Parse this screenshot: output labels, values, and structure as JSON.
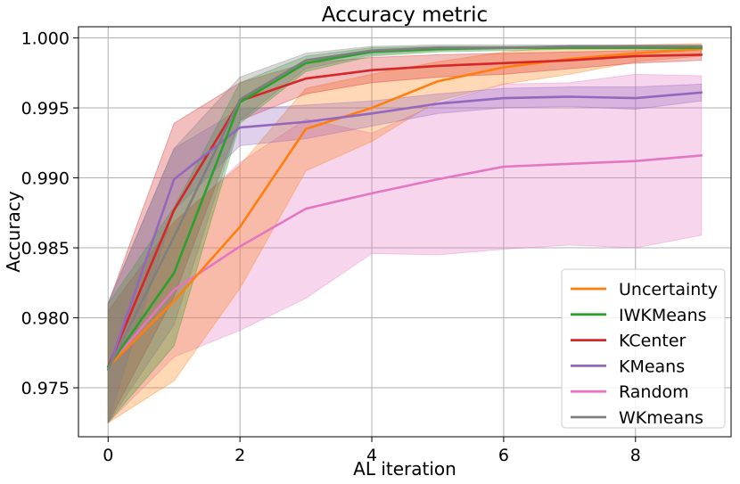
{
  "chart_data": {
    "type": "line",
    "title": "Accuracy metric",
    "xlabel": "AL iteration",
    "ylabel": "Accuracy",
    "xlim": [
      -0.45,
      9.45
    ],
    "ylim": [
      0.9715,
      1.0008
    ],
    "xticks": [
      0,
      2,
      4,
      6,
      8
    ],
    "yticks": [
      0.975,
      0.98,
      0.985,
      0.99,
      0.995,
      1.0
    ],
    "ytick_labels": [
      "0.975",
      "0.980",
      "0.985",
      "0.990",
      "0.995",
      "1.000"
    ],
    "grid": true,
    "legend_position": "bottom-right",
    "x": [
      0,
      1,
      2,
      3,
      4,
      5,
      6,
      7,
      8,
      9
    ],
    "series": [
      {
        "name": "Random",
        "color": "#e377c2",
        "values": [
          0.9765,
          0.982,
          0.9851,
          0.9878,
          0.9889,
          0.9899,
          0.9908,
          0.991,
          0.9912,
          0.9916
        ],
        "lower": [
          0.9725,
          0.9772,
          0.9791,
          0.9814,
          0.9846,
          0.9845,
          0.9849,
          0.9852,
          0.985,
          0.9859
        ],
        "upper": [
          0.9805,
          0.9868,
          0.9911,
          0.9942,
          0.9932,
          0.9953,
          0.9967,
          0.9968,
          0.9974,
          0.9973
        ]
      },
      {
        "name": "Uncertainty",
        "color": "#ff7f0e",
        "values": [
          0.9765,
          0.9812,
          0.9865,
          0.9935,
          0.995,
          0.9969,
          0.9979,
          0.9985,
          0.9989,
          0.9992
        ],
        "lower": [
          0.9725,
          0.9755,
          0.9821,
          0.9905,
          0.9926,
          0.9955,
          0.9967,
          0.9974,
          0.9983,
          0.9987
        ],
        "upper": [
          0.9805,
          0.9869,
          0.9909,
          0.9964,
          0.9974,
          0.9983,
          0.999,
          0.9994,
          0.9995,
          0.9996
        ]
      },
      {
        "name": "KCenter",
        "color": "#d62728",
        "values": [
          0.9765,
          0.9877,
          0.9955,
          0.9971,
          0.9977,
          0.998,
          0.9982,
          0.9984,
          0.9987,
          0.9988
        ],
        "lower": [
          0.9725,
          0.9815,
          0.9941,
          0.996,
          0.9968,
          0.9972,
          0.9974,
          0.9978,
          0.9982,
          0.9984
        ],
        "upper": [
          0.981,
          0.9939,
          0.9968,
          0.9982,
          0.9986,
          0.9988,
          0.9989,
          0.999,
          0.9991,
          0.9992
        ]
      },
      {
        "name": "KMeans",
        "color": "#9467bd",
        "values": [
          0.9763,
          0.9899,
          0.9936,
          0.994,
          0.9946,
          0.9953,
          0.9957,
          0.9958,
          0.9957,
          0.9961
        ],
        "lower": [
          0.9725,
          0.9877,
          0.9923,
          0.9928,
          0.9937,
          0.9946,
          0.995,
          0.9951,
          0.9949,
          0.9955
        ],
        "upper": [
          0.981,
          0.9921,
          0.9949,
          0.9952,
          0.9955,
          0.996,
          0.9964,
          0.9965,
          0.9965,
          0.9967
        ]
      },
      {
        "name": "IWKMeans",
        "color": "#2ca02c",
        "values": [
          0.9765,
          0.9832,
          0.9954,
          0.9982,
          0.999,
          0.9992,
          0.9993,
          0.9993,
          0.9993,
          0.9993
        ],
        "lower": [
          0.9725,
          0.978,
          0.9939,
          0.9976,
          0.9987,
          0.999,
          0.9991,
          0.9992,
          0.9992,
          0.9992
        ],
        "upper": [
          0.981,
          0.9879,
          0.9968,
          0.9987,
          0.9993,
          0.9994,
          0.9994,
          0.9994,
          0.9994,
          0.9994
        ]
      },
      {
        "name": "WKmeans",
        "color": "#7f7f7f",
        "values": [
          0.9763,
          0.9858,
          0.9956,
          0.9984,
          0.9991,
          0.9993,
          0.9993,
          0.9994,
          0.9994,
          0.9994
        ],
        "lower": [
          0.9725,
          0.9795,
          0.9941,
          0.9978,
          0.9988,
          0.9991,
          0.9992,
          0.9993,
          0.9993,
          0.9993
        ],
        "upper": [
          0.9811,
          0.9921,
          0.9972,
          0.9989,
          0.9994,
          0.9995,
          0.9995,
          0.9995,
          0.9995,
          0.9995
        ]
      }
    ],
    "legend_order": [
      "Uncertainty",
      "IWKMeans",
      "KCenter",
      "KMeans",
      "Random",
      "WKmeans"
    ]
  }
}
